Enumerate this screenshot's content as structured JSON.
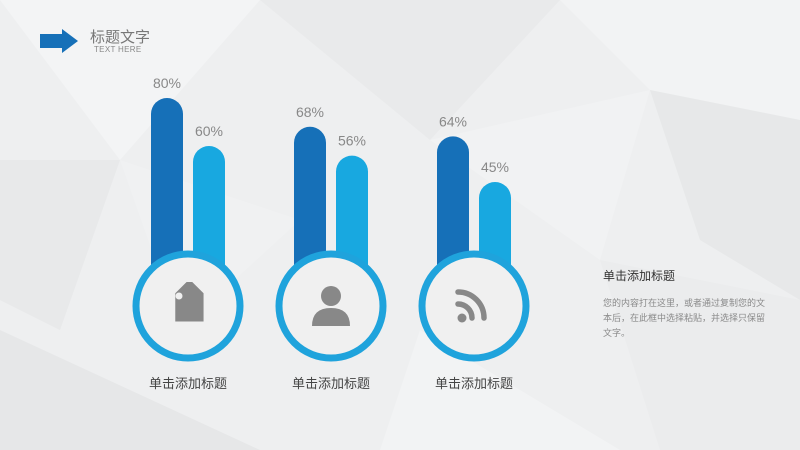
{
  "header": {
    "title": "标题文字",
    "subtitle": "TEXT HERE"
  },
  "colors": {
    "dark_blue": "#1670b8",
    "light_blue": "#18a8e0",
    "ring": "#1fa3dc",
    "icon_gray": "#888888"
  },
  "chart_data": {
    "type": "bar",
    "categories": [
      "单击添加标题",
      "单击添加标题",
      "单击添加标题"
    ],
    "series": [
      {
        "values": [
          80,
          68,
          64
        ]
      },
      {
        "values": [
          60,
          56,
          45
        ]
      }
    ],
    "value_suffix": "%",
    "ylim": [
      0,
      100
    ],
    "grid": false,
    "icons": [
      "tag-icon",
      "user-icon",
      "rss-icon"
    ]
  },
  "side_panel": {
    "title": "单击添加标题",
    "body": "您的内容打在这里，或者通过复制您的文本后，在此框中选择粘贴，并选择只保留文字。"
  }
}
